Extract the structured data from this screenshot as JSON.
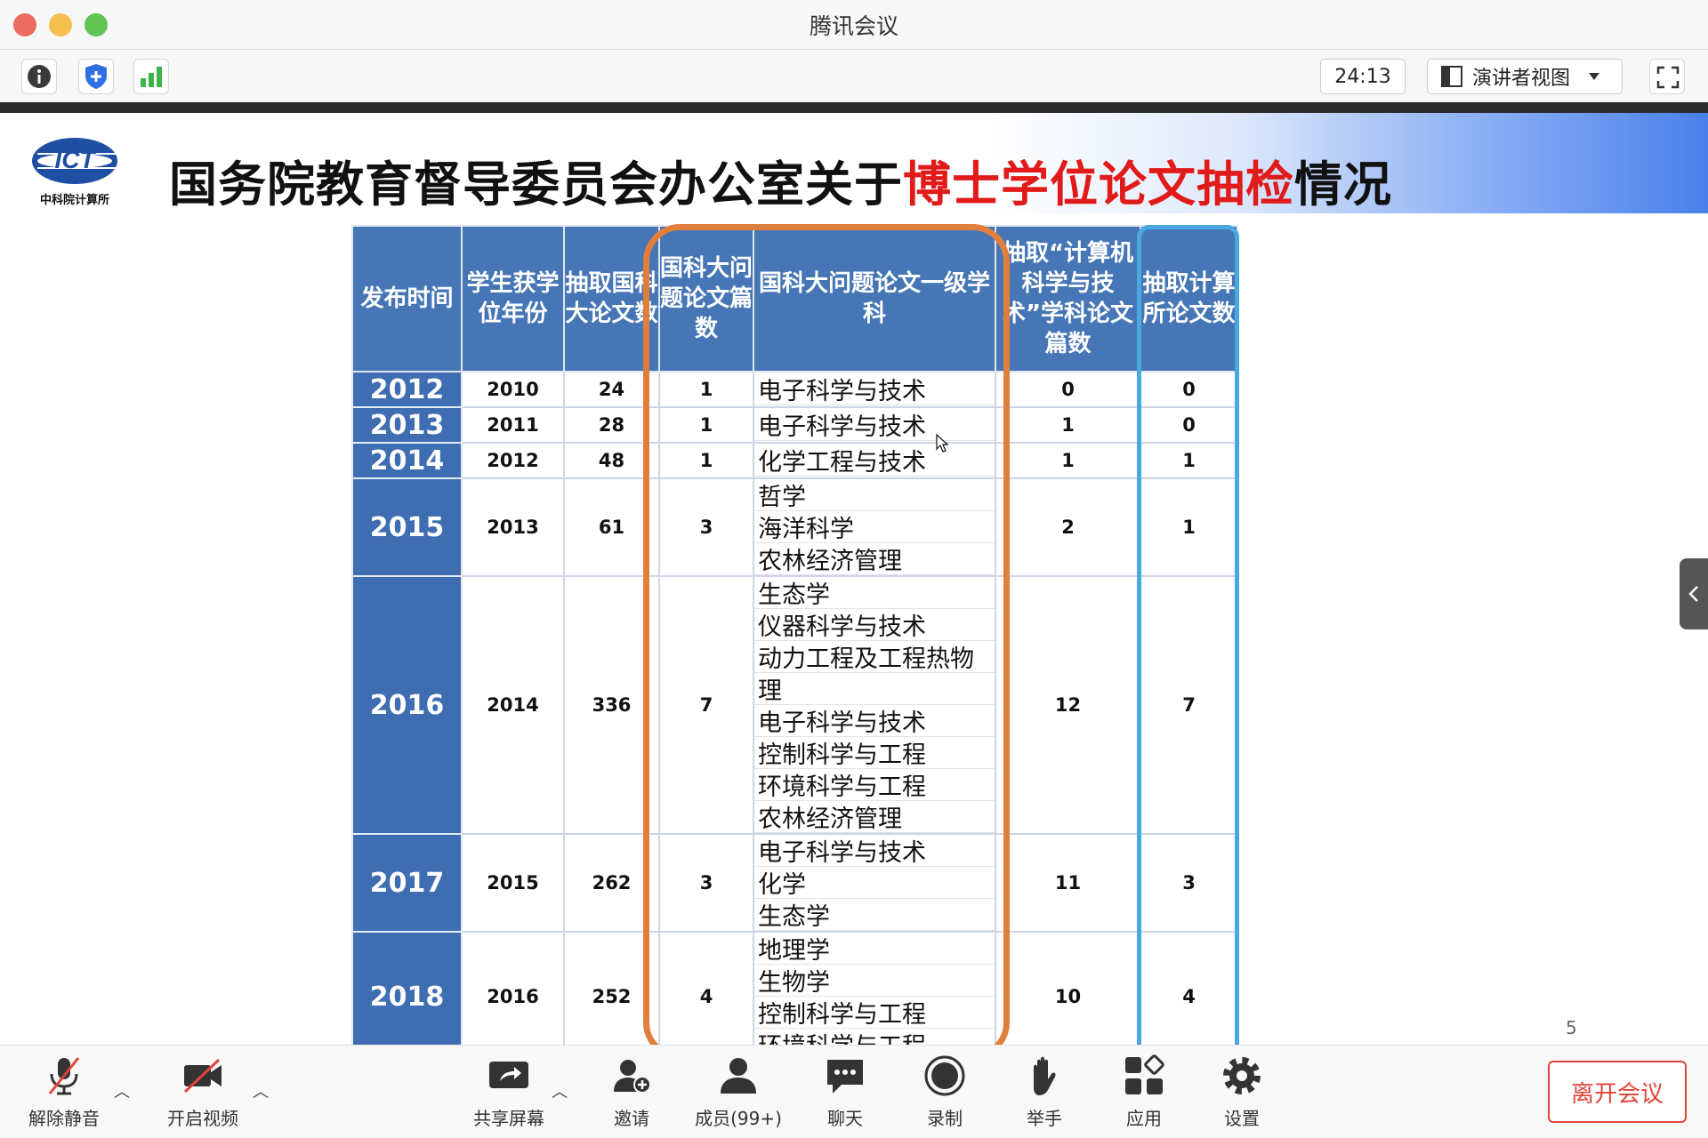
{
  "window": {
    "title": "腾讯会议"
  },
  "toolbar": {
    "timer": "24:13",
    "view_mode": "演讲者视图"
  },
  "slide": {
    "title_parts": [
      "国务院教育督导委员会办公室关于",
      "博士学位论文抽检",
      "情况"
    ],
    "logo_text": "ICT",
    "logo_caption": "中科院计算所",
    "page_number": "5"
  },
  "table": {
    "headers": [
      "发布时间",
      "学生获学位年份",
      "抽取国科大论文数",
      "国科大问题论文篇数",
      "国科大问题论文一级学科",
      "抽取“计算机科学与技术”学科论文篇数",
      "抽取计算所论文数"
    ],
    "rows": [
      {
        "year": "2012",
        "degree_year": "2010",
        "sampled": "24",
        "problem": "1",
        "disciplines": [
          "电子科学与技术"
        ],
        "cs": "0",
        "ict": "0"
      },
      {
        "year": "2013",
        "degree_year": "2011",
        "sampled": "28",
        "problem": "1",
        "disciplines": [
          "电子科学与技术"
        ],
        "cs": "1",
        "ict": "0"
      },
      {
        "year": "2014",
        "degree_year": "2012",
        "sampled": "48",
        "problem": "1",
        "disciplines": [
          "化学工程与技术"
        ],
        "cs": "1",
        "ict": "1"
      },
      {
        "year": "2015",
        "degree_year": "2013",
        "sampled": "61",
        "problem": "3",
        "disciplines": [
          "哲学",
          "海洋科学",
          "农林经济管理"
        ],
        "cs": "2",
        "ict": "1"
      },
      {
        "year": "2016",
        "degree_year": "2014",
        "sampled": "336",
        "problem": "7",
        "disciplines": [
          "生态学",
          "仪器科学与技术",
          "动力工程及工程热物",
          "理",
          "电子科学与技术",
          "控制科学与工程",
          "环境科学与工程",
          "农林经济管理"
        ],
        "cs": "12",
        "ict": "7"
      },
      {
        "year": "2017",
        "degree_year": "2015",
        "sampled": "262",
        "problem": "3",
        "disciplines": [
          "电子科学与技术",
          "化学",
          "生态学"
        ],
        "cs": "11",
        "ict": "3"
      },
      {
        "year": "2018",
        "degree_year": "2016",
        "sampled": "252",
        "problem": "4",
        "disciplines": [
          "地理学",
          "生物学",
          "控制科学与工程",
          "环境科学与工程"
        ],
        "cs": "10",
        "ict": "4"
      }
    ]
  },
  "bottombar": {
    "unmute": "解除静音",
    "video": "开启视频",
    "share": "共享屏幕",
    "invite": "邀请",
    "members": "成员(99+)",
    "chat": "聊天",
    "record": "录制",
    "raise_hand": "举手",
    "apps": "应用",
    "settings": "设置",
    "leave": "离开会议"
  }
}
